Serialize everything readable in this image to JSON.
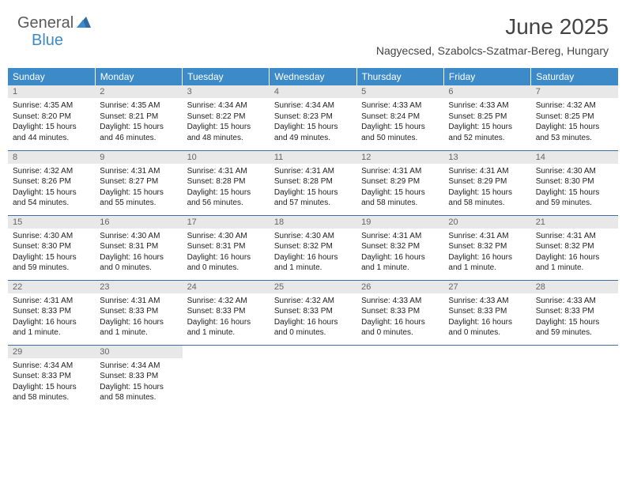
{
  "logo": {
    "part1": "General",
    "part2": "Blue"
  },
  "title": "June 2025",
  "location": "Nagyecsed, Szabolcs-Szatmar-Bereg, Hungary",
  "colors": {
    "header_bg": "#3d8ac9",
    "header_text": "#ffffff",
    "daynum_bg": "#e8e8e8",
    "border": "#3d6fa0",
    "logo_gray": "#5a5a5a",
    "logo_blue": "#3d8ac9"
  },
  "weekdays": [
    "Sunday",
    "Monday",
    "Tuesday",
    "Wednesday",
    "Thursday",
    "Friday",
    "Saturday"
  ],
  "weeks": [
    [
      {
        "day": "1",
        "sunrise": "Sunrise: 4:35 AM",
        "sunset": "Sunset: 8:20 PM",
        "daylight1": "Daylight: 15 hours",
        "daylight2": "and 44 minutes."
      },
      {
        "day": "2",
        "sunrise": "Sunrise: 4:35 AM",
        "sunset": "Sunset: 8:21 PM",
        "daylight1": "Daylight: 15 hours",
        "daylight2": "and 46 minutes."
      },
      {
        "day": "3",
        "sunrise": "Sunrise: 4:34 AM",
        "sunset": "Sunset: 8:22 PM",
        "daylight1": "Daylight: 15 hours",
        "daylight2": "and 48 minutes."
      },
      {
        "day": "4",
        "sunrise": "Sunrise: 4:34 AM",
        "sunset": "Sunset: 8:23 PM",
        "daylight1": "Daylight: 15 hours",
        "daylight2": "and 49 minutes."
      },
      {
        "day": "5",
        "sunrise": "Sunrise: 4:33 AM",
        "sunset": "Sunset: 8:24 PM",
        "daylight1": "Daylight: 15 hours",
        "daylight2": "and 50 minutes."
      },
      {
        "day": "6",
        "sunrise": "Sunrise: 4:33 AM",
        "sunset": "Sunset: 8:25 PM",
        "daylight1": "Daylight: 15 hours",
        "daylight2": "and 52 minutes."
      },
      {
        "day": "7",
        "sunrise": "Sunrise: 4:32 AM",
        "sunset": "Sunset: 8:25 PM",
        "daylight1": "Daylight: 15 hours",
        "daylight2": "and 53 minutes."
      }
    ],
    [
      {
        "day": "8",
        "sunrise": "Sunrise: 4:32 AM",
        "sunset": "Sunset: 8:26 PM",
        "daylight1": "Daylight: 15 hours",
        "daylight2": "and 54 minutes."
      },
      {
        "day": "9",
        "sunrise": "Sunrise: 4:31 AM",
        "sunset": "Sunset: 8:27 PM",
        "daylight1": "Daylight: 15 hours",
        "daylight2": "and 55 minutes."
      },
      {
        "day": "10",
        "sunrise": "Sunrise: 4:31 AM",
        "sunset": "Sunset: 8:28 PM",
        "daylight1": "Daylight: 15 hours",
        "daylight2": "and 56 minutes."
      },
      {
        "day": "11",
        "sunrise": "Sunrise: 4:31 AM",
        "sunset": "Sunset: 8:28 PM",
        "daylight1": "Daylight: 15 hours",
        "daylight2": "and 57 minutes."
      },
      {
        "day": "12",
        "sunrise": "Sunrise: 4:31 AM",
        "sunset": "Sunset: 8:29 PM",
        "daylight1": "Daylight: 15 hours",
        "daylight2": "and 58 minutes."
      },
      {
        "day": "13",
        "sunrise": "Sunrise: 4:31 AM",
        "sunset": "Sunset: 8:29 PM",
        "daylight1": "Daylight: 15 hours",
        "daylight2": "and 58 minutes."
      },
      {
        "day": "14",
        "sunrise": "Sunrise: 4:30 AM",
        "sunset": "Sunset: 8:30 PM",
        "daylight1": "Daylight: 15 hours",
        "daylight2": "and 59 minutes."
      }
    ],
    [
      {
        "day": "15",
        "sunrise": "Sunrise: 4:30 AM",
        "sunset": "Sunset: 8:30 PM",
        "daylight1": "Daylight: 15 hours",
        "daylight2": "and 59 minutes."
      },
      {
        "day": "16",
        "sunrise": "Sunrise: 4:30 AM",
        "sunset": "Sunset: 8:31 PM",
        "daylight1": "Daylight: 16 hours",
        "daylight2": "and 0 minutes."
      },
      {
        "day": "17",
        "sunrise": "Sunrise: 4:30 AM",
        "sunset": "Sunset: 8:31 PM",
        "daylight1": "Daylight: 16 hours",
        "daylight2": "and 0 minutes."
      },
      {
        "day": "18",
        "sunrise": "Sunrise: 4:30 AM",
        "sunset": "Sunset: 8:32 PM",
        "daylight1": "Daylight: 16 hours",
        "daylight2": "and 1 minute."
      },
      {
        "day": "19",
        "sunrise": "Sunrise: 4:31 AM",
        "sunset": "Sunset: 8:32 PM",
        "daylight1": "Daylight: 16 hours",
        "daylight2": "and 1 minute."
      },
      {
        "day": "20",
        "sunrise": "Sunrise: 4:31 AM",
        "sunset": "Sunset: 8:32 PM",
        "daylight1": "Daylight: 16 hours",
        "daylight2": "and 1 minute."
      },
      {
        "day": "21",
        "sunrise": "Sunrise: 4:31 AM",
        "sunset": "Sunset: 8:32 PM",
        "daylight1": "Daylight: 16 hours",
        "daylight2": "and 1 minute."
      }
    ],
    [
      {
        "day": "22",
        "sunrise": "Sunrise: 4:31 AM",
        "sunset": "Sunset: 8:33 PM",
        "daylight1": "Daylight: 16 hours",
        "daylight2": "and 1 minute."
      },
      {
        "day": "23",
        "sunrise": "Sunrise: 4:31 AM",
        "sunset": "Sunset: 8:33 PM",
        "daylight1": "Daylight: 16 hours",
        "daylight2": "and 1 minute."
      },
      {
        "day": "24",
        "sunrise": "Sunrise: 4:32 AM",
        "sunset": "Sunset: 8:33 PM",
        "daylight1": "Daylight: 16 hours",
        "daylight2": "and 1 minute."
      },
      {
        "day": "25",
        "sunrise": "Sunrise: 4:32 AM",
        "sunset": "Sunset: 8:33 PM",
        "daylight1": "Daylight: 16 hours",
        "daylight2": "and 0 minutes."
      },
      {
        "day": "26",
        "sunrise": "Sunrise: 4:33 AM",
        "sunset": "Sunset: 8:33 PM",
        "daylight1": "Daylight: 16 hours",
        "daylight2": "and 0 minutes."
      },
      {
        "day": "27",
        "sunrise": "Sunrise: 4:33 AM",
        "sunset": "Sunset: 8:33 PM",
        "daylight1": "Daylight: 16 hours",
        "daylight2": "and 0 minutes."
      },
      {
        "day": "28",
        "sunrise": "Sunrise: 4:33 AM",
        "sunset": "Sunset: 8:33 PM",
        "daylight1": "Daylight: 15 hours",
        "daylight2": "and 59 minutes."
      }
    ],
    [
      {
        "day": "29",
        "sunrise": "Sunrise: 4:34 AM",
        "sunset": "Sunset: 8:33 PM",
        "daylight1": "Daylight: 15 hours",
        "daylight2": "and 58 minutes."
      },
      {
        "day": "30",
        "sunrise": "Sunrise: 4:34 AM",
        "sunset": "Sunset: 8:33 PM",
        "daylight1": "Daylight: 15 hours",
        "daylight2": "and 58 minutes."
      },
      null,
      null,
      null,
      null,
      null
    ]
  ]
}
